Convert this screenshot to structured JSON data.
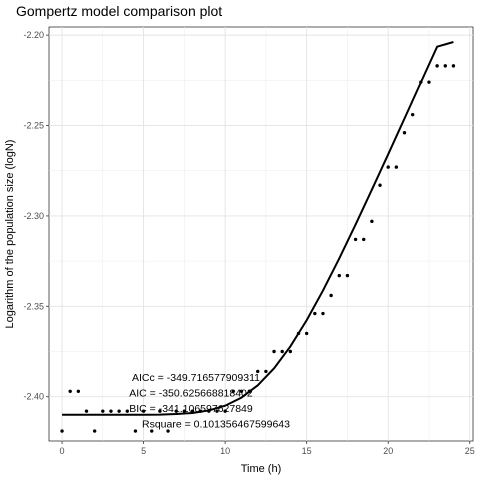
{
  "chart_data": {
    "type": "scatter",
    "title": "Gompertz model comparison plot",
    "xlabel": "Time (h)",
    "ylabel": "Logarithm of the population size (logN)",
    "xlim": [
      -0.8,
      25.2
    ],
    "ylim": [
      -2.4245,
      -2.1955
    ],
    "x_ticks": [
      0,
      5,
      10,
      15,
      20,
      25
    ],
    "x_tick_labels": [
      "0",
      "5",
      "10",
      "15",
      "20",
      "25"
    ],
    "y_ticks": [
      -2.4,
      -2.35,
      -2.3,
      -2.25,
      -2.2
    ],
    "y_tick_labels": [
      "-2.40",
      "-2.35",
      "-2.30",
      "-2.25",
      "-2.20"
    ],
    "grid": true,
    "legend": "none",
    "series": [
      {
        "kind": "points",
        "color": "#000000",
        "x": [
          0,
          0.5,
          1,
          1.5,
          2,
          2.5,
          3,
          3.5,
          4,
          4.5,
          5,
          5.5,
          6,
          6.5,
          7,
          7.5,
          8,
          8.5,
          9,
          9.5,
          10,
          10.5,
          11,
          11.5,
          12,
          12.5,
          13,
          13.5,
          14,
          14.5,
          15,
          15.5,
          16,
          16.5,
          17,
          17.5,
          18,
          18.5,
          19,
          19.5,
          20,
          20.5,
          21,
          21.5,
          22,
          22.5,
          23,
          23.5,
          24
        ],
        "y": [
          -2.419,
          -2.397,
          -2.397,
          -2.408,
          -2.419,
          -2.408,
          -2.408,
          -2.408,
          -2.408,
          -2.419,
          -2.408,
          -2.419,
          -2.408,
          -2.419,
          -2.408,
          -2.408,
          -2.408,
          -2.408,
          -2.408,
          -2.408,
          -2.408,
          -2.397,
          -2.397,
          -2.397,
          -2.386,
          -2.386,
          -2.375,
          -2.375,
          -2.375,
          -2.365,
          -2.365,
          -2.354,
          -2.354,
          -2.344,
          -2.333,
          -2.333,
          -2.313,
          -2.313,
          -2.303,
          -2.283,
          -2.273,
          -2.273,
          -2.254,
          -2.244,
          -2.226,
          -2.226,
          -2.217,
          -2.217,
          -2.217
        ]
      },
      {
        "kind": "line",
        "color": "#000000",
        "x": [
          0,
          1,
          2,
          3,
          4,
          5,
          6,
          7,
          8,
          9,
          10,
          11,
          12,
          13,
          14,
          15,
          16,
          17,
          18,
          19,
          20,
          21,
          22,
          23,
          24
        ],
        "y": [
          -2.41,
          -2.41,
          -2.41,
          -2.41,
          -2.41,
          -2.41,
          -2.4099,
          -2.4096,
          -2.409,
          -2.4076,
          -2.405,
          -2.4005,
          -2.3937,
          -2.3843,
          -2.3722,
          -2.3577,
          -2.3413,
          -2.3235,
          -2.3048,
          -2.2855,
          -2.2659,
          -2.2461,
          -2.2262,
          -2.2064,
          -2.2038
        ]
      }
    ],
    "annotations": [
      "AICc = -349.716577909311",
      "AIC = -350.625668818402",
      "BIC = -341.106597627849",
      "Rsquare = 0.101356467599643"
    ]
  }
}
